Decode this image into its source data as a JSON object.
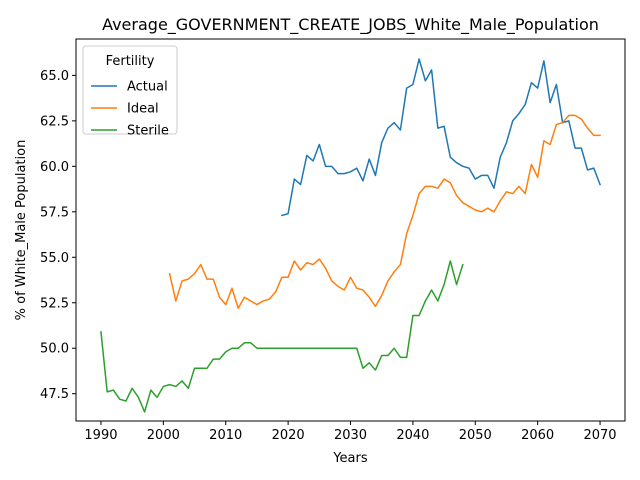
{
  "chart_data": {
    "type": "line",
    "title": "Average_GOVERNMENT_CREATE_JOBS_White_Male_Population",
    "xlabel": "Years",
    "ylabel": "% of White_Male Population",
    "xlim": [
      1986,
      2074
    ],
    "ylim": [
      46.0,
      67.0
    ],
    "xticks": [
      1990,
      2000,
      2010,
      2020,
      2030,
      2040,
      2050,
      2060,
      2070
    ],
    "yticks": [
      47.5,
      50.0,
      52.5,
      55.0,
      57.5,
      60.0,
      62.5,
      65.0
    ],
    "ytick_labels": [
      "47.5",
      "50.0",
      "52.5",
      "55.0",
      "57.5",
      "60.0",
      "62.5",
      "65.0"
    ],
    "grid": false,
    "legend": {
      "title": "Fertility",
      "placement": "top-left"
    },
    "series": [
      {
        "name": "Actual",
        "color": "#1f77b4",
        "x": [
          2019,
          2020,
          2021,
          2022,
          2023,
          2024,
          2025,
          2026,
          2027,
          2028,
          2029,
          2030,
          2031,
          2032,
          2033,
          2034,
          2035,
          2036,
          2037,
          2038,
          2039,
          2040,
          2041,
          2042,
          2043,
          2044,
          2045,
          2046,
          2047,
          2048,
          2049,
          2050,
          2051,
          2052,
          2053,
          2054,
          2055,
          2056,
          2057,
          2058,
          2059,
          2060,
          2061,
          2062,
          2063,
          2064,
          2065,
          2066,
          2067,
          2068,
          2069,
          2070
        ],
        "y": [
          57.3,
          57.4,
          59.3,
          59.0,
          60.6,
          60.3,
          61.2,
          60.0,
          60.0,
          59.6,
          59.6,
          59.7,
          59.9,
          59.2,
          60.4,
          59.5,
          61.3,
          62.1,
          62.4,
          62.0,
          64.3,
          64.5,
          65.9,
          64.7,
          65.3,
          62.1,
          62.2,
          60.5,
          60.2,
          60.0,
          59.9,
          59.3,
          59.5,
          59.5,
          58.8,
          60.5,
          61.3,
          62.5,
          62.9,
          63.4,
          64.6,
          64.3,
          65.8,
          63.5,
          64.5,
          62.4,
          62.5,
          61.0,
          61.0,
          59.8,
          59.9,
          59.0
        ]
      },
      {
        "name": "Ideal",
        "color": "#ff7f0e",
        "x": [
          2001,
          2002,
          2003,
          2004,
          2005,
          2006,
          2007,
          2008,
          2009,
          2010,
          2011,
          2012,
          2013,
          2014,
          2015,
          2016,
          2017,
          2018,
          2019,
          2020,
          2021,
          2022,
          2023,
          2024,
          2025,
          2026,
          2027,
          2028,
          2029,
          2030,
          2031,
          2032,
          2033,
          2034,
          2035,
          2036,
          2037,
          2038,
          2039,
          2040,
          2041,
          2042,
          2043,
          2044,
          2045,
          2046,
          2047,
          2048,
          2049,
          2050,
          2051,
          2052,
          2053,
          2054,
          2055,
          2056,
          2057,
          2058,
          2059,
          2060,
          2061,
          2062,
          2063,
          2064,
          2065,
          2066,
          2067,
          2068,
          2069,
          2070
        ],
        "y": [
          54.1,
          52.6,
          53.7,
          53.8,
          54.1,
          54.6,
          53.8,
          53.8,
          52.8,
          52.4,
          53.3,
          52.2,
          52.8,
          52.6,
          52.4,
          52.6,
          52.7,
          53.1,
          53.9,
          53.9,
          54.8,
          54.3,
          54.7,
          54.6,
          54.9,
          54.4,
          53.7,
          53.4,
          53.2,
          53.9,
          53.3,
          53.2,
          52.8,
          52.3,
          52.9,
          53.7,
          54.2,
          54.6,
          56.3,
          57.3,
          58.5,
          58.9,
          58.9,
          58.8,
          59.3,
          59.1,
          58.4,
          58.0,
          57.8,
          57.6,
          57.5,
          57.7,
          57.5,
          58.1,
          58.6,
          58.5,
          58.9,
          58.5,
          60.1,
          59.4,
          61.4,
          61.2,
          62.3,
          62.4,
          62.8,
          62.8,
          62.6,
          62.1,
          61.7,
          61.7
        ]
      },
      {
        "name": "Sterile",
        "color": "#2ca02c",
        "x": [
          1990,
          1991,
          1992,
          1993,
          1994,
          1995,
          1996,
          1997,
          1998,
          1999,
          2000,
          2001,
          2002,
          2003,
          2004,
          2005,
          2006,
          2007,
          2008,
          2009,
          2010,
          2011,
          2012,
          2013,
          2014,
          2015,
          2016,
          2017,
          2018,
          2019,
          2020,
          2021,
          2022,
          2023,
          2024,
          2025,
          2026,
          2027,
          2028,
          2029,
          2030,
          2031,
          2032,
          2033,
          2034,
          2035,
          2036,
          2037,
          2038,
          2039,
          2040,
          2041,
          2042,
          2043,
          2044,
          2045,
          2046,
          2047,
          2048
        ],
        "y": [
          50.9,
          47.6,
          47.7,
          47.2,
          47.1,
          47.8,
          47.3,
          46.5,
          47.7,
          47.3,
          47.9,
          48.0,
          47.9,
          48.2,
          47.8,
          48.9,
          48.9,
          48.9,
          49.4,
          49.4,
          49.8,
          50.0,
          50.0,
          50.3,
          50.3,
          50.0,
          50.0,
          50.0,
          50.0,
          50.0,
          50.0,
          50.0,
          50.0,
          50.0,
          50.0,
          50.0,
          50.0,
          50.0,
          50.0,
          50.0,
          50.0,
          50.0,
          48.9,
          49.2,
          48.8,
          49.6,
          49.6,
          50.0,
          49.5,
          49.5,
          51.8,
          51.8,
          52.6,
          53.2,
          52.6,
          53.5,
          54.8,
          53.5,
          54.6
        ]
      }
    ]
  }
}
